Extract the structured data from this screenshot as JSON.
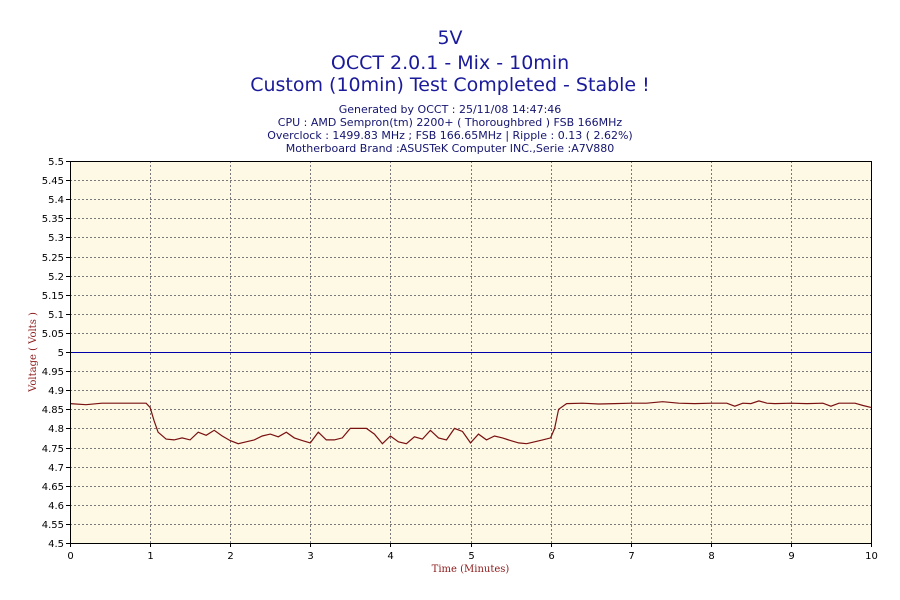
{
  "chart_data": {
    "type": "line",
    "title": "5V",
    "subtitle": "OCCT 2.0.1 - Mix - 10min",
    "status": "Custom (10min) Test Completed - Stable !",
    "info_lines": [
      "Generated by OCCT : 25/11/08 14:47:46",
      "CPU : AMD Sempron(tm) 2200+ ( Thoroughbred ) FSB 166MHz",
      "Overclock : 1499.83 MHz ; FSB 166.65MHz | Ripple : 0.13 ( 2.62%)",
      "Motherboard Brand :ASUSTeK Computer INC.,Serie :A7V880"
    ],
    "xlabel": "Time (Minutes)",
    "ylabel": "Voltage ( Volts )",
    "xlim": [
      0,
      10
    ],
    "ylim": [
      4.5,
      5.5
    ],
    "x_ticks": [
      "0",
      "1",
      "2",
      "3",
      "4",
      "5",
      "6",
      "7",
      "8",
      "9",
      "10"
    ],
    "y_ticks": [
      "4.5",
      "4.55",
      "4.6",
      "4.65",
      "4.7",
      "4.75",
      "4.8",
      "4.85",
      "4.9",
      "4.95",
      "5",
      "5.05",
      "5.1",
      "5.15",
      "5.2",
      "5.25",
      "5.3",
      "5.35",
      "5.4",
      "5.45",
      "5.5"
    ],
    "grid": true,
    "reference_line": {
      "y": 5.0,
      "color": "#0000aa"
    },
    "series": [
      {
        "color": "#7a1010",
        "x": [
          0,
          0.2,
          0.4,
          0.6,
          0.8,
          0.95,
          1.0,
          1.05,
          1.1,
          1.2,
          1.3,
          1.4,
          1.5,
          1.6,
          1.7,
          1.8,
          1.9,
          2.0,
          2.1,
          2.2,
          2.3,
          2.4,
          2.5,
          2.6,
          2.7,
          2.8,
          2.9,
          3.0,
          3.1,
          3.2,
          3.3,
          3.4,
          3.5,
          3.6,
          3.7,
          3.8,
          3.9,
          4.0,
          4.1,
          4.2,
          4.3,
          4.4,
          4.5,
          4.6,
          4.7,
          4.8,
          4.9,
          5.0,
          5.1,
          5.2,
          5.3,
          5.4,
          5.5,
          5.6,
          5.7,
          5.8,
          5.9,
          6.0,
          6.05,
          6.1,
          6.2,
          6.4,
          6.6,
          6.8,
          7.0,
          7.2,
          7.4,
          7.6,
          7.8,
          8.0,
          8.2,
          8.3,
          8.4,
          8.5,
          8.6,
          8.7,
          8.8,
          9.0,
          9.2,
          9.4,
          9.5,
          9.6,
          9.8,
          9.9,
          10.0
        ],
        "values": [
          4.865,
          4.862,
          4.866,
          4.866,
          4.866,
          4.866,
          4.855,
          4.82,
          4.79,
          4.772,
          4.77,
          4.775,
          4.77,
          4.79,
          4.782,
          4.795,
          4.78,
          4.768,
          4.76,
          4.765,
          4.77,
          4.78,
          4.785,
          4.778,
          4.79,
          4.775,
          4.768,
          4.762,
          4.79,
          4.77,
          4.77,
          4.775,
          4.8,
          4.8,
          4.8,
          4.785,
          4.76,
          4.78,
          4.765,
          4.76,
          4.778,
          4.772,
          4.795,
          4.775,
          4.77,
          4.8,
          4.792,
          4.762,
          4.785,
          4.77,
          4.78,
          4.775,
          4.768,
          4.762,
          4.76,
          4.765,
          4.77,
          4.775,
          4.8,
          4.85,
          4.865,
          4.866,
          4.864,
          4.865,
          4.866,
          4.866,
          4.87,
          4.866,
          4.865,
          4.866,
          4.866,
          4.858,
          4.866,
          4.865,
          4.872,
          4.866,
          4.865,
          4.866,
          4.865,
          4.866,
          4.858,
          4.866,
          4.866,
          4.86,
          4.855
        ]
      }
    ]
  }
}
